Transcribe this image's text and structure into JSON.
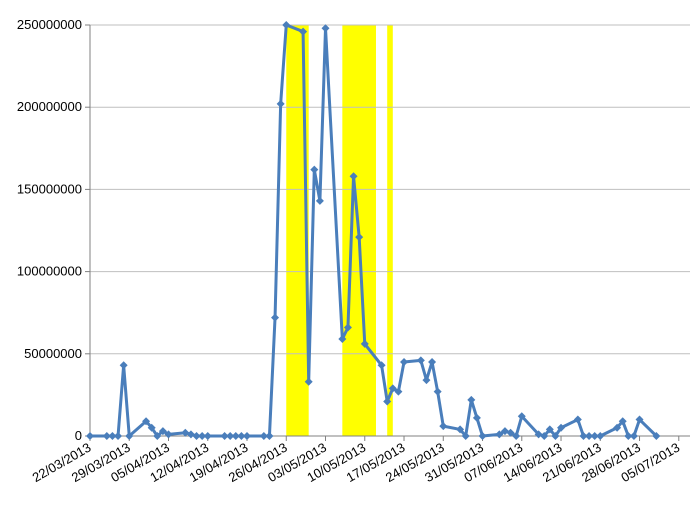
{
  "chart_data": {
    "type": "line",
    "title": "",
    "xlabel": "",
    "ylabel": "",
    "ylim": [
      0,
      250000000
    ],
    "xlim": [
      "2013-03-22",
      "2013-07-07"
    ],
    "grid": "horizontal",
    "legend": "none",
    "colors": {
      "line": "#4A7EBB",
      "marker": "#4A7EBB",
      "highlight": "#FFFF00",
      "grid": "#BFBFBF",
      "axis": "#808080"
    },
    "y_ticks": [
      0,
      50000000,
      100000000,
      150000000,
      200000000,
      250000000
    ],
    "y_tick_labels": [
      "0",
      "50000000",
      "100000000",
      "150000000",
      "200000000",
      "250000000"
    ],
    "x_tick_labels": [
      "22/03/2013",
      "29/03/2013",
      "05/04/2013",
      "12/04/2013",
      "19/04/2013",
      "26/04/2013",
      "03/05/2013",
      "10/05/2013",
      "17/05/2013",
      "24/05/2013",
      "31/05/2013",
      "07/06/2013",
      "14/06/2013",
      "21/06/2013",
      "28/06/2013",
      "05/07/2013"
    ],
    "x_ticks": [
      "2013-03-22",
      "2013-03-29",
      "2013-04-05",
      "2013-04-12",
      "2013-04-19",
      "2013-04-26",
      "2013-05-03",
      "2013-05-10",
      "2013-05-17",
      "2013-05-24",
      "2013-05-31",
      "2013-06-07",
      "2013-06-14",
      "2013-06-21",
      "2013-06-28",
      "2013-07-05"
    ],
    "highlight_bands": [
      {
        "start": "2013-04-26",
        "end": "2013-04-30"
      },
      {
        "start": "2013-05-06",
        "end": "2013-05-12"
      },
      {
        "start": "2013-05-14",
        "end": "2013-05-15"
      }
    ],
    "series": [
      {
        "x": [
          "2013-03-22",
          "2013-03-25",
          "2013-03-26",
          "2013-03-27",
          "2013-03-28",
          "2013-03-29",
          "2013-04-01",
          "2013-04-02",
          "2013-04-03",
          "2013-04-04",
          "2013-04-05",
          "2013-04-08",
          "2013-04-09",
          "2013-04-10",
          "2013-04-11",
          "2013-04-12",
          "2013-04-15",
          "2013-04-16",
          "2013-04-17",
          "2013-04-18",
          "2013-04-19",
          "2013-04-22",
          "2013-04-23",
          "2013-04-24",
          "2013-04-25",
          "2013-04-26",
          "2013-04-29",
          "2013-04-30",
          "2013-05-01",
          "2013-05-02",
          "2013-05-03",
          "2013-05-06",
          "2013-05-07",
          "2013-05-08",
          "2013-05-09",
          "2013-05-10",
          "2013-05-13",
          "2013-05-14",
          "2013-05-15",
          "2013-05-16",
          "2013-05-17",
          "2013-05-20",
          "2013-05-21",
          "2013-05-22",
          "2013-05-23",
          "2013-05-24",
          "2013-05-27",
          "2013-05-28",
          "2013-05-29",
          "2013-05-30",
          "2013-05-31",
          "2013-06-03",
          "2013-06-04",
          "2013-06-05",
          "2013-06-06",
          "2013-06-07",
          "2013-06-10",
          "2013-06-11",
          "2013-06-12",
          "2013-06-13",
          "2013-06-14",
          "2013-06-17",
          "2013-06-18",
          "2013-06-19",
          "2013-06-20",
          "2013-06-21",
          "2013-06-24",
          "2013-06-25",
          "2013-06-26",
          "2013-06-27",
          "2013-06-28",
          "2013-07-01"
        ],
        "y": [
          0,
          0,
          0,
          0,
          43000000,
          0,
          9000000,
          5000000,
          0,
          3000000,
          1000000,
          2000000,
          1000000,
          0,
          0,
          0,
          0,
          0,
          0,
          0,
          0,
          0,
          0,
          72000000,
          202000000,
          250000000,
          246000000,
          33000000,
          162000000,
          143000000,
          248000000,
          59000000,
          66000000,
          158000000,
          121000000,
          56000000,
          43000000,
          21000000,
          29000000,
          27000000,
          45000000,
          46000000,
          34000000,
          45000000,
          27000000,
          6000000,
          4000000,
          0,
          22000000,
          11000000,
          0,
          1000000,
          3000000,
          2000000,
          0,
          12000000,
          1000000,
          0,
          4000000,
          0,
          5000000,
          10000000,
          0,
          0,
          0,
          0,
          5000000,
          9000000,
          0,
          0,
          10000000,
          0
        ]
      }
    ]
  }
}
